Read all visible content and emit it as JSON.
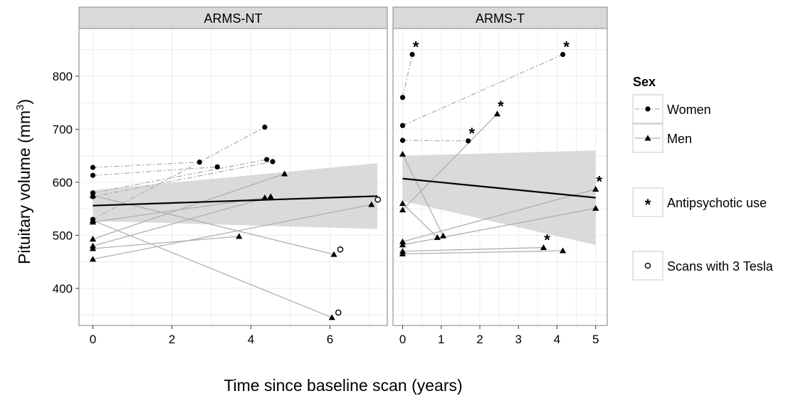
{
  "chart_data": {
    "type": "scatter",
    "xlabel": "Time since baseline scan (years)",
    "ylabel": "Pituitary volume (mm",
    "ylabel_sup": "3",
    "ylabel_close": ")",
    "ylim": [
      330,
      890
    ],
    "yticks": [
      "400",
      "500",
      "600",
      "700",
      "800"
    ],
    "grid": true,
    "legend": {
      "title": "Sex",
      "position": "right",
      "items": [
        {
          "label": "Women",
          "shape": "circle",
          "line": "dashed"
        },
        {
          "label": "Men",
          "shape": "triangle",
          "line": "solid"
        }
      ],
      "extra": [
        {
          "label": "Antipsychotic use",
          "symbol": "*"
        },
        {
          "label": "Scans with 3 Tesla",
          "symbol": "open-circle"
        }
      ]
    },
    "colors": {
      "panel_strip": "#d9d9d9",
      "strip_border": "#888888",
      "ribbon": "#d3d3d3",
      "trend": "#000000",
      "subject_line": "#b0b0b0",
      "grid": "#ececec"
    },
    "panels": [
      {
        "title": "ARMS-NT",
        "xlim": [
          -0.35,
          7.45
        ],
        "xticks": [
          "0",
          "2",
          "4",
          "6"
        ],
        "trend": {
          "x": [
            0,
            7.2
          ],
          "y": [
            556,
            574
          ]
        },
        "ribbon": {
          "x": [
            0,
            7.2
          ],
          "upper": [
            585,
            636
          ],
          "lower": [
            527,
            512
          ]
        },
        "subjects": [
          {
            "sex": "Women",
            "points": [
              {
                "x": 0,
                "y": 628
              },
              {
                "x": 2.7,
                "y": 638
              }
            ]
          },
          {
            "sex": "Women",
            "points": [
              {
                "x": 0,
                "y": 613
              },
              {
                "x": 3.15,
                "y": 629
              }
            ]
          },
          {
            "sex": "Women",
            "points": [
              {
                "x": 0,
                "y": 580
              },
              {
                "x": 4.4,
                "y": 643
              }
            ]
          },
          {
            "sex": "Women",
            "points": [
              {
                "x": 0,
                "y": 573
              },
              {
                "x": 4.55,
                "y": 639
              }
            ]
          },
          {
            "sex": "Women",
            "points": [
              {
                "x": 0,
                "y": 530
              },
              {
                "x": 4.35,
                "y": 704
              }
            ]
          },
          {
            "sex": "Men",
            "points": [
              {
                "x": 0,
                "y": 575
              },
              {
                "x": 6.1,
                "y": 464,
                "tesla3": true
              }
            ]
          },
          {
            "sex": "Men",
            "points": [
              {
                "x": 0,
                "y": 525
              },
              {
                "x": 4.35,
                "y": 571
              }
            ]
          },
          {
            "sex": "Men",
            "points": [
              {
                "x": 0,
                "y": 493
              },
              {
                "x": 4.85,
                "y": 616
              }
            ]
          },
          {
            "sex": "Men",
            "points": [
              {
                "x": 0,
                "y": 480
              },
              {
                "x": 4.5,
                "y": 573
              }
            ]
          },
          {
            "sex": "Men",
            "points": [
              {
                "x": 0,
                "y": 475
              },
              {
                "x": 3.7,
                "y": 498
              }
            ]
          },
          {
            "sex": "Men",
            "points": [
              {
                "x": 0,
                "y": 455
              },
              {
                "x": 7.05,
                "y": 558,
                "tesla3": true
              }
            ]
          },
          {
            "sex": "Men",
            "points": [
              {
                "x": 0,
                "y": 528
              },
              {
                "x": 6.05,
                "y": 345,
                "tesla3": true
              }
            ]
          }
        ]
      },
      {
        "title": "ARMS-T",
        "xlim": [
          -0.25,
          5.3
        ],
        "xticks": [
          "0",
          "1",
          "2",
          "3",
          "4",
          "5"
        ],
        "trend": {
          "x": [
            0,
            5
          ],
          "y": [
            607,
            571
          ]
        },
        "ribbon": {
          "x": [
            0,
            5
          ],
          "upper": [
            650,
            660
          ],
          "lower": [
            565,
            482
          ]
        },
        "subjects": [
          {
            "sex": "Women",
            "points": [
              {
                "x": 0,
                "y": 760
              },
              {
                "x": 0.25,
                "y": 841,
                "antipsychotic": true
              }
            ]
          },
          {
            "sex": "Women",
            "points": [
              {
                "x": 0,
                "y": 707
              },
              {
                "x": 4.15,
                "y": 841,
                "antipsychotic": true
              }
            ]
          },
          {
            "sex": "Women",
            "points": [
              {
                "x": 0,
                "y": 679
              },
              {
                "x": 1.7,
                "y": 678,
                "antipsychotic": true
              }
            ]
          },
          {
            "sex": "Men",
            "points": [
              {
                "x": 0,
                "y": 653
              },
              {
                "x": 1.05,
                "y": 499
              }
            ]
          },
          {
            "sex": "Men",
            "points": [
              {
                "x": 0,
                "y": 560
              },
              {
                "x": 0.9,
                "y": 496
              }
            ]
          },
          {
            "sex": "Men",
            "points": [
              {
                "x": 0,
                "y": 548
              },
              {
                "x": 2.45,
                "y": 729,
                "antipsychotic": true
              }
            ]
          },
          {
            "sex": "Men",
            "points": [
              {
                "x": 0,
                "y": 488
              },
              {
                "x": 5,
                "y": 587,
                "antipsychotic": true
              }
            ]
          },
          {
            "sex": "Men",
            "points": [
              {
                "x": 0,
                "y": 482
              },
              {
                "x": 5,
                "y": 551
              }
            ]
          },
          {
            "sex": "Men",
            "points": [
              {
                "x": 0,
                "y": 470
              },
              {
                "x": 3.65,
                "y": 477,
                "antipsychotic": true
              }
            ]
          },
          {
            "sex": "Men",
            "points": [
              {
                "x": 0,
                "y": 465
              },
              {
                "x": 4.15,
                "y": 471
              }
            ]
          }
        ]
      }
    ]
  }
}
